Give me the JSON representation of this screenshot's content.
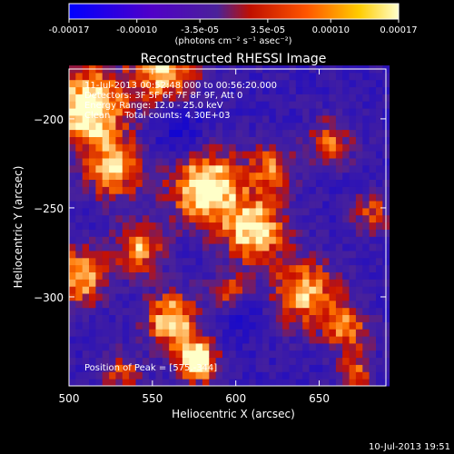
{
  "chart_data": {
    "type": "heatmap",
    "title": "Reconstructed RHESSI Image",
    "xlabel": "Heliocentric X (arcsec)",
    "ylabel": "Heliocentric Y (arcsec)",
    "xlim": [
      500,
      690
    ],
    "ylim": [
      -350,
      -172
    ],
    "x_ticks": [
      500,
      550,
      600,
      650
    ],
    "y_ticks": [
      -200,
      -250,
      -300
    ],
    "grid": false,
    "colorbar": {
      "ticks": [
        "-0.00017",
        "-0.00010",
        "-3.5e-05",
        "3.5e-05",
        "0.00010",
        "0.00017"
      ],
      "tick_values": [
        -0.00017,
        -0.0001,
        -3.5e-05,
        3.5e-05,
        0.0001,
        0.00017
      ],
      "range": [
        -0.00017,
        0.00017
      ],
      "unit_label": "(photons cm⁻² s⁻¹ asec⁻²)",
      "colormap": [
        "#0000ff",
        "#5500cc",
        "#4a2299",
        "#cc1100",
        "#ff5500",
        "#ffcc00",
        "#ffffcc"
      ]
    },
    "annotations": [
      "11-Jul-2013 00:52:48.000 to 00:56:20.000",
      "Detectors: 3F 5F 6F 7F 8F 9F, Att 0",
      "Energy Range: 12.0 - 25.0 keV",
      "Clean     Total counts: 4.30E+03"
    ],
    "peak_label": "Position of Peak = [575,-344]",
    "peak_position": [
      575,
      -344
    ],
    "timestamp": "10-Jul-2013 19:51",
    "image_cells": {
      "pixel_size_arcsec": 4,
      "bright_regions_note": "ring-shaped positive emission around a dark negative core"
    }
  }
}
